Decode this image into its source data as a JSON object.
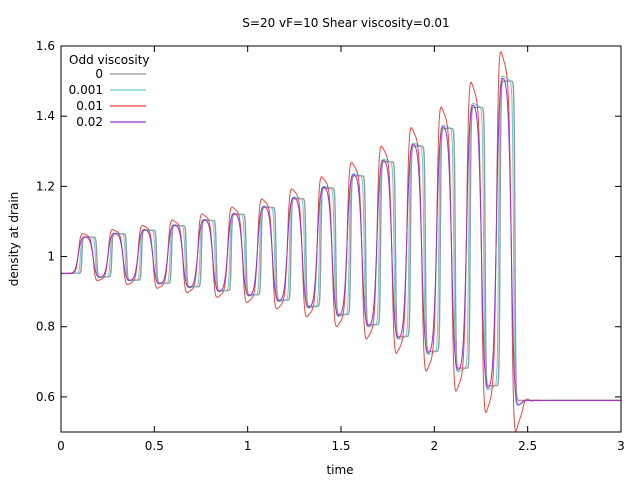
{
  "chart_data": {
    "type": "line",
    "title": "S=20 vF=10 Shear viscosity=0.01",
    "xlabel": "time",
    "ylabel": "density at drain",
    "xlim": [
      0,
      3
    ],
    "ylim": [
      0.5,
      1.6
    ],
    "xticks": [
      0,
      0.5,
      1,
      1.5,
      2,
      2.5,
      3
    ],
    "xtick_labels": [
      "0",
      "0.5",
      "1",
      "1.5",
      "2",
      "2.5",
      "3"
    ],
    "yticks": [
      0.6,
      0.8,
      1,
      1.2,
      1.4,
      1.6
    ],
    "ytick_labels": [
      "0.6",
      "0.8",
      "1",
      "1.2",
      "1.4",
      "1.6"
    ],
    "grid": false,
    "legend": {
      "title": "Odd viscosity",
      "position": "top-left"
    },
    "period": 0.16,
    "edge_time": 0.092,
    "lows": [
      0.952,
      0.942,
      0.933,
      0.924,
      0.914,
      0.903,
      0.891,
      0.876,
      0.858,
      0.835,
      0.806,
      0.772,
      0.73,
      0.682,
      0.632,
      0.59
    ],
    "highs": [
      1.055,
      1.065,
      1.075,
      1.088,
      1.103,
      1.12,
      1.14,
      1.165,
      1.195,
      1.23,
      1.27,
      1.315,
      1.365,
      1.425,
      1.5
    ],
    "series": [
      {
        "name": "0",
        "color": "#999999",
        "width": 1.4,
        "smooth": 0.0022,
        "overshoot": 0.0,
        "wiggle": 0.0,
        "damp": 0.03,
        "delay": 0.02
      },
      {
        "name": "0.001",
        "color": "#66cccc",
        "width": 1.0,
        "smooth": 0.003,
        "overshoot": 0.02,
        "wiggle": 0.0,
        "damp": 0.03,
        "delay": 0.012
      },
      {
        "name": "0.01",
        "color": "#e8473d",
        "width": 1.0,
        "smooth": 0.006,
        "overshoot": 0.13,
        "wiggle": 0.03,
        "damp": 0.035,
        "delay": 0.0
      },
      {
        "name": "0.02",
        "color": "#9933cc",
        "width": 1.0,
        "smooth": 0.008,
        "overshoot": 0.04,
        "wiggle": 0.0,
        "damp": 0.03,
        "delay": 0.0
      }
    ]
  }
}
